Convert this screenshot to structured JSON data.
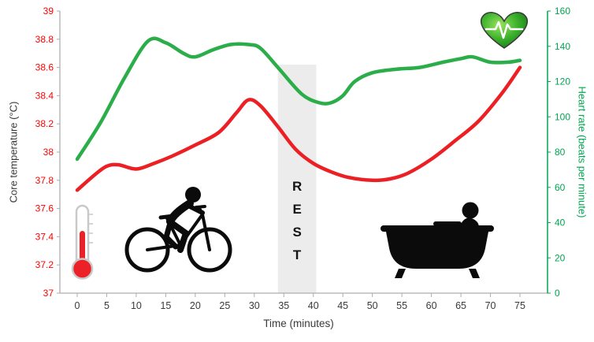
{
  "chart_data": {
    "type": "line",
    "title": "",
    "xlabel": "Time (minutes)",
    "x_range": [
      0,
      75
    ],
    "x_ticks": [
      0,
      5,
      10,
      15,
      20,
      25,
      30,
      35,
      40,
      45,
      50,
      55,
      60,
      65,
      70,
      75
    ],
    "left_axis": {
      "label": "Core temperature (°C)",
      "min": 37,
      "max": 39,
      "ticks": [
        "37",
        "37.2",
        "37.4",
        "37.6",
        "37.8",
        "38",
        "38.2",
        "38.4",
        "38.6",
        "38.8",
        "39"
      ],
      "tick_color": "#FF0000",
      "label_color": "#3A3A3A"
    },
    "right_axis": {
      "label": "Heart rate (beats per minute)",
      "min": 0,
      "max": 160,
      "ticks": [
        "0",
        "20",
        "40",
        "60",
        "80",
        "100",
        "120",
        "140",
        "160"
      ],
      "tick_color": "#00A650",
      "label_color": "#00A650"
    },
    "series": [
      {
        "name": "Core temperature",
        "axis": "left",
        "color": "#EC2024",
        "x": [
          0,
          3,
          5,
          7,
          10,
          13,
          16,
          20,
          24,
          27,
          29,
          31,
          34,
          37,
          40,
          43,
          46,
          50,
          53,
          56,
          60,
          64,
          68,
          72,
          75
        ],
        "values": [
          37.73,
          37.84,
          37.9,
          37.91,
          37.88,
          37.92,
          37.97,
          38.05,
          38.14,
          38.28,
          38.37,
          38.33,
          38.18,
          38.02,
          37.92,
          37.86,
          37.82,
          37.8,
          37.81,
          37.85,
          37.95,
          38.08,
          38.22,
          38.42,
          38.6
        ]
      },
      {
        "name": "Heart rate",
        "axis": "right",
        "color": "#2BAE4A",
        "x": [
          0,
          4,
          8,
          12,
          15,
          18,
          20,
          23,
          26,
          29,
          31,
          34,
          38,
          41,
          43,
          45,
          47,
          50,
          54,
          58,
          62,
          65,
          67,
          70,
          73,
          75
        ],
        "values": [
          76,
          97,
          122,
          143,
          142,
          136,
          134,
          138,
          141,
          141,
          139,
          128,
          113,
          108,
          108,
          112,
          120,
          125,
          127,
          128,
          131,
          133,
          134,
          131,
          131,
          132
        ]
      }
    ],
    "rest_band": {
      "label": "REST",
      "x_start": 34,
      "x_end": 40.5,
      "y_top": 38.62,
      "fill": "#ECECEC"
    },
    "grid": "off",
    "legend": "none"
  },
  "icons": {
    "thermometer": "thermometer-icon",
    "cyclist": "cyclist-icon",
    "bathtub": "bathtub-icon",
    "heart_ecg": "heart-ecg-icon"
  }
}
